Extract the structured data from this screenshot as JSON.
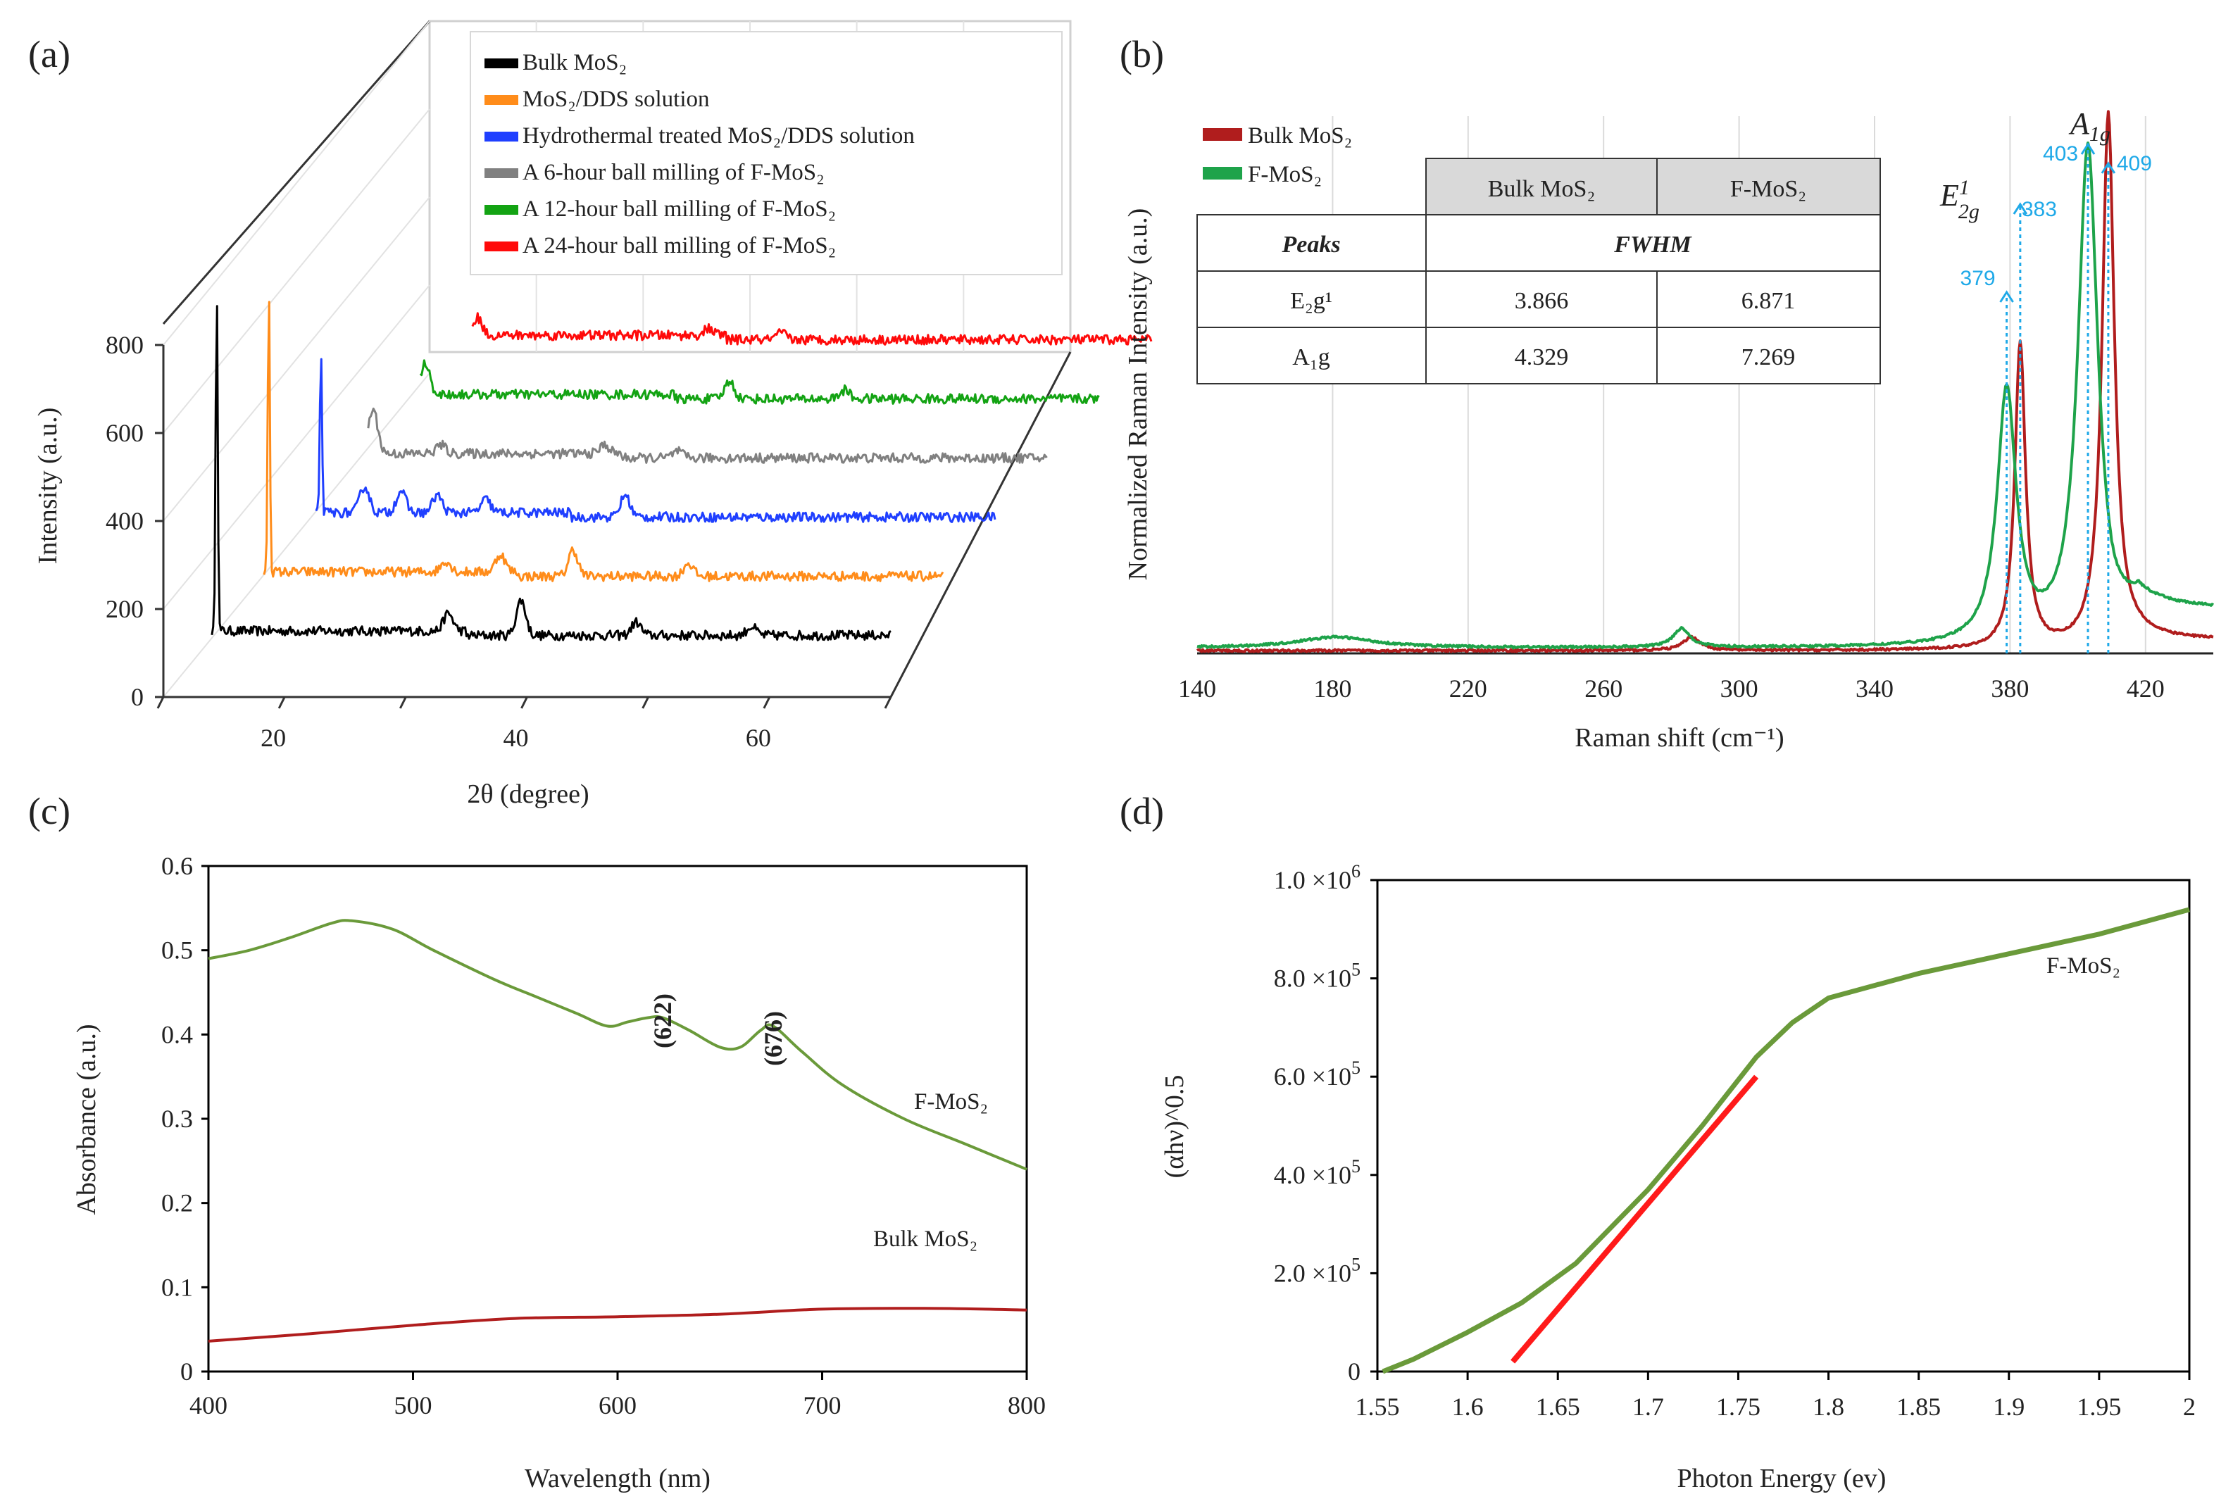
{
  "panels": {
    "a": {
      "label": "(a)"
    },
    "b": {
      "label": "(b)"
    },
    "c": {
      "label": "(c)"
    },
    "d": {
      "label": "(d)"
    }
  },
  "chart_data": [
    {
      "id": "a",
      "type": "line",
      "subtype": "3d-waterfall",
      "xlabel": "2θ (degree)",
      "ylabel": "Intensity (a.u.)",
      "x_ticks": [
        "20",
        "40",
        "60"
      ],
      "y_ticks": [
        "0",
        "200",
        "400",
        "600",
        "800"
      ],
      "xlim": [
        10,
        70
      ],
      "ylim": [
        0,
        800
      ],
      "series": [
        {
          "name": "Bulk MoS2",
          "legend": "Bulk MoS₂",
          "color": "#000000",
          "baseline": 130,
          "peaks": [
            [
              14.4,
              800
            ],
            [
              33.5,
              40
            ],
            [
              39.5,
              80
            ],
            [
              49,
              30
            ],
            [
              58.5,
              20
            ]
          ]
        },
        {
          "name": "MoS2/DDS solution",
          "legend": "MoS₂/DDS solution",
          "color": "#ff8c1a",
          "baseline": 290,
          "peaks": [
            [
              14.4,
              660
            ],
            [
              29,
              25
            ],
            [
              33.5,
              40
            ],
            [
              39.5,
              60
            ],
            [
              49,
              30
            ]
          ]
        },
        {
          "name": "Hydrothermal treated MoS2/DDS solution",
          "legend": "Hydrothermal treated MoS₂/DDS solution",
          "color": "#1f3fff",
          "baseline": 440,
          "peaks": [
            [
              14.4,
              380
            ],
            [
              18,
              60
            ],
            [
              21,
              50
            ],
            [
              24,
              40
            ],
            [
              28,
              30
            ],
            [
              39.5,
              50
            ]
          ]
        },
        {
          "name": "A 6-hour ball milling of F-MoS2",
          "legend": "A 6-hour ball milling of F-MoS₂",
          "color": "#808080",
          "baseline": 580,
          "peaks": [
            [
              14.4,
              100
            ],
            [
              20,
              20
            ],
            [
              33.5,
              20
            ],
            [
              39.5,
              15
            ]
          ]
        },
        {
          "name": "A 12-hour ball milling of F-MoS2",
          "legend": "A 12-hour ball milling of F-MoS₂",
          "color": "#13a313",
          "baseline": 710,
          "peaks": [
            [
              14.4,
              70
            ],
            [
              39.5,
              40
            ],
            [
              49,
              20
            ]
          ]
        },
        {
          "name": "A 24-hour ball milling of F-MoS2",
          "legend": "A 24-hour ball milling of F-MoS₂",
          "color": "#ff0a0a",
          "baseline": 830,
          "peaks": [
            [
              14.4,
              40
            ],
            [
              33.5,
              15
            ],
            [
              39.5,
              15
            ]
          ]
        }
      ]
    },
    {
      "id": "b",
      "type": "line",
      "xlabel": "Raman shift (cm⁻¹)",
      "ylabel": "Normalized Raman Intensity (a.u.)",
      "x_ticks": [
        "140",
        "180",
        "220",
        "260",
        "300",
        "340",
        "380",
        "420"
      ],
      "xlim": [
        140,
        440
      ],
      "ylim": [
        0,
        1
      ],
      "series": [
        {
          "name": "Bulk MoS2",
          "legend": "Bulk MoS₂",
          "color": "#b01d1d",
          "baseline": 0.005,
          "tail": 0.02,
          "peaks": [
            [
              383,
              0.57,
              1.9
            ],
            [
              409,
              1.0,
              2.2
            ],
            [
              286,
              0.025,
              3
            ]
          ]
        },
        {
          "name": "F-MoS2",
          "legend": "F-MoS₂",
          "color": "#1ea34a",
          "baseline": 0.01,
          "tail": 0.07,
          "peaks": [
            [
              379,
              0.47,
              3.4
            ],
            [
              403,
              0.93,
              3.6
            ],
            [
              283,
              0.035,
              3
            ],
            [
              181,
              0.02,
              14
            ]
          ]
        }
      ],
      "annotations": {
        "e2g_label": "E",
        "e2g_sup": "1",
        "e2g_sub": "2g",
        "a1g_label": "A",
        "a1g_sub": "1g",
        "markers": [
          {
            "x": 379,
            "label": "379"
          },
          {
            "x": 383,
            "label": "383"
          },
          {
            "x": 403,
            "label": "403"
          },
          {
            "x": 409,
            "label": "409"
          }
        ]
      },
      "table": {
        "col_headers": [
          "Bulk MoS₂",
          "F-MoS₂"
        ],
        "row_header_title": "Peaks",
        "span_header": "FWHM",
        "rows": [
          {
            "peak": "E₂g¹",
            "bulk": "3.866",
            "f": "6.871"
          },
          {
            "peak": "A₁g",
            "bulk": "4.329",
            "f": "7.269"
          }
        ]
      }
    },
    {
      "id": "c",
      "type": "line",
      "xlabel": "Wavelength (nm)",
      "ylabel": "Absorbance (a.u.)",
      "x_ticks": [
        "400",
        "500",
        "600",
        "700",
        "800"
      ],
      "y_ticks": [
        "0",
        "0.1",
        "0.2",
        "0.3",
        "0.4",
        "0.5",
        "0.6"
      ],
      "xlim": [
        400,
        800
      ],
      "ylim": [
        0,
        0.6
      ],
      "series": [
        {
          "name": "F-MoS2",
          "label": "F-MoS₂",
          "color": "#6a9a3a",
          "x": [
            400,
            420,
            440,
            460,
            470,
            490,
            510,
            540,
            560,
            580,
            595,
            605,
            615,
            622,
            635,
            650,
            660,
            670,
            676,
            690,
            710,
            740,
            770,
            800
          ],
          "y": [
            0.49,
            0.5,
            0.515,
            0.532,
            0.535,
            0.525,
            0.5,
            0.465,
            0.445,
            0.425,
            0.41,
            0.415,
            0.42,
            0.42,
            0.405,
            0.385,
            0.385,
            0.405,
            0.41,
            0.38,
            0.34,
            0.3,
            0.27,
            0.24
          ]
        },
        {
          "name": "Bulk MoS2",
          "label": "Bulk MoS₂",
          "color": "#b01d1d",
          "x": [
            400,
            450,
            500,
            550,
            600,
            650,
            700,
            750,
            800
          ],
          "y": [
            0.036,
            0.045,
            0.055,
            0.063,
            0.065,
            0.068,
            0.074,
            0.075,
            0.073
          ]
        }
      ],
      "annotations": [
        {
          "x": 622,
          "label": "(622)"
        },
        {
          "x": 676,
          "label": "(676)"
        }
      ]
    },
    {
      "id": "d",
      "type": "line",
      "xlabel": "Photon Energy (ev)",
      "ylabel": "(αhν)^0.5",
      "x_ticks": [
        "1.55",
        "1.6",
        "1.65",
        "1.7",
        "1.75",
        "1.8",
        "1.85",
        "1.9",
        "1.95",
        "2"
      ],
      "y_ticks": [
        "0",
        "2.0 ×10",
        "4.0 ×10",
        "6.0 ×10",
        "8.0 ×10",
        "1.0 ×10"
      ],
      "y_tick_exponents": [
        "",
        "5",
        "5",
        "5",
        "5",
        "6"
      ],
      "xlim": [
        1.55,
        2.0
      ],
      "ylim": [
        0,
        1000000
      ],
      "series": [
        {
          "name": "F-MoS2",
          "label": "F-MoS₂",
          "color": "#6a9a3a",
          "x": [
            1.553,
            1.57,
            1.6,
            1.63,
            1.66,
            1.7,
            1.73,
            1.76,
            1.78,
            1.8,
            1.85,
            1.9,
            1.95,
            2.0
          ],
          "y": [
            0,
            25000,
            80000,
            140000,
            220000,
            370000,
            500000,
            640000,
            710000,
            760000,
            810000,
            850000,
            890000,
            940000
          ]
        },
        {
          "name": "Linear fit",
          "color": "#ff1a1a",
          "x": [
            1.625,
            1.76
          ],
          "y": [
            20000,
            600000
          ]
        }
      ]
    }
  ]
}
